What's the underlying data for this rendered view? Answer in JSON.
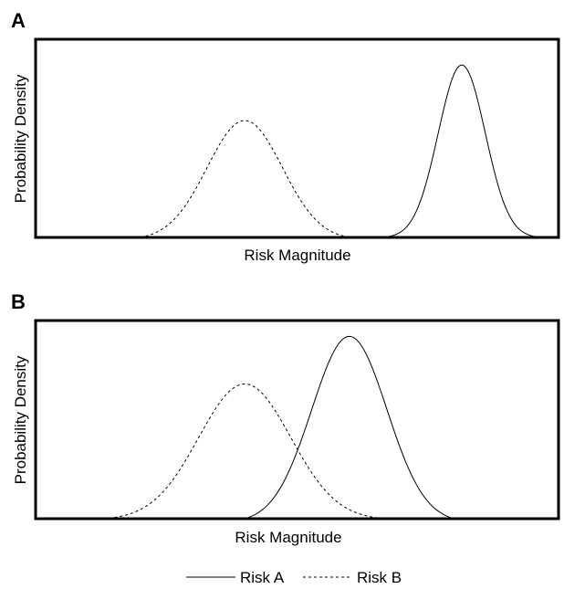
{
  "chart_data": [
    {
      "type": "line",
      "panel_label": "A",
      "xlabel": "Risk Magnitude",
      "ylabel": "Probability Density",
      "grid": false,
      "series": [
        {
          "name": "Risk A",
          "style": "solid",
          "distribution": "normal",
          "mean": 0.815,
          "sd": 0.045,
          "support": [
            0.66,
            0.96
          ],
          "peak": 0.87
        },
        {
          "name": "Risk B",
          "style": "dashed",
          "distribution": "normal",
          "mean": 0.4,
          "sd": 0.072,
          "support": [
            0.2,
            0.62
          ],
          "peak": 0.59
        }
      ]
    },
    {
      "type": "line",
      "panel_label": "B",
      "xlabel": "Risk Magnitude",
      "ylabel": "Probability Density",
      "grid": false,
      "series": [
        {
          "name": "Risk A",
          "style": "solid",
          "distribution": "normal",
          "mean": 0.6,
          "sd": 0.072,
          "support": [
            0.4,
            0.82
          ],
          "peak": 0.92
        },
        {
          "name": "Risk B",
          "style": "dashed",
          "distribution": "normal",
          "mean": 0.4,
          "sd": 0.088,
          "support": [
            0.13,
            0.68
          ],
          "peak": 0.68
        }
      ]
    }
  ],
  "legend": {
    "position": "bottom-center",
    "items": [
      {
        "label": "Risk A",
        "style": "solid"
      },
      {
        "label": "Risk B",
        "style": "dashed"
      }
    ]
  }
}
